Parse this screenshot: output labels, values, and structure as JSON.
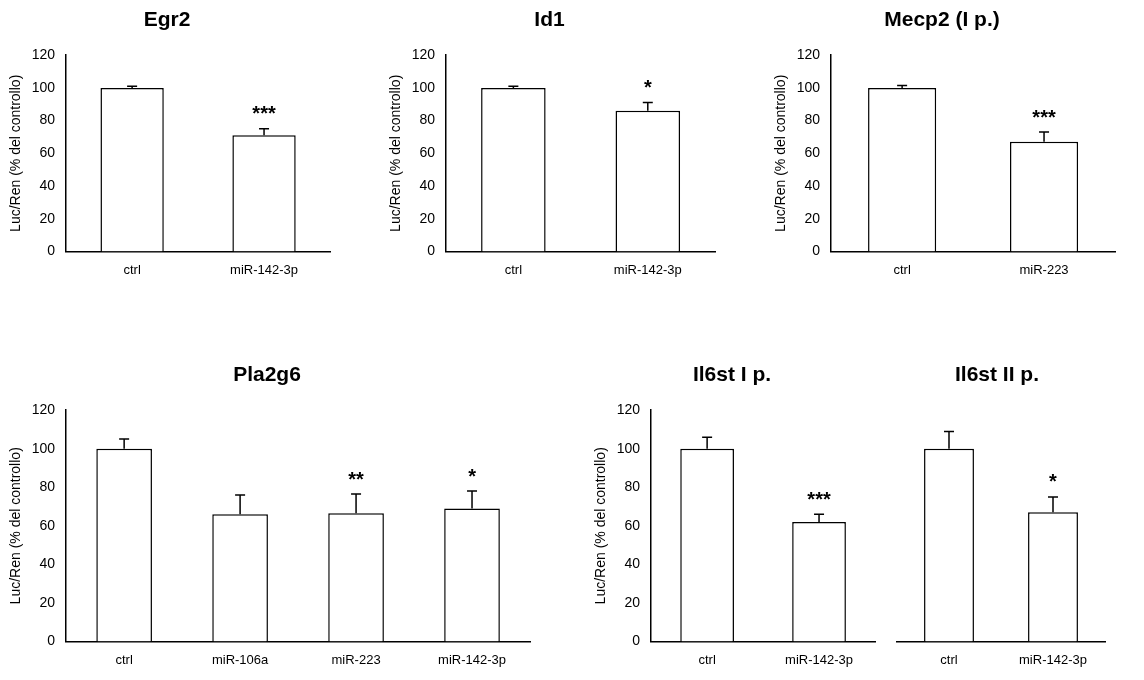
{
  "chart_data": [
    {
      "type": "bar",
      "title": "Egr2",
      "y_label": "Luc/Ren (% del controllo)",
      "categories": [
        "ctrl",
        "miR-142-3p"
      ],
      "values": [
        100,
        71
      ],
      "errors": [
        1,
        4
      ],
      "annotations": [
        null,
        "***"
      ],
      "color": "#ffffff",
      "ylim": [
        0,
        120
      ],
      "yticks": [
        0,
        20,
        40,
        60,
        80,
        100,
        120
      ],
      "grid": false
    },
    {
      "type": "bar",
      "title": "Id1",
      "y_label": "Luc/Ren (% del controllo)",
      "categories": [
        "ctrl",
        "miR-142-3p"
      ],
      "values": [
        100,
        86
      ],
      "errors": [
        1,
        5
      ],
      "annotations": [
        null,
        "*"
      ],
      "color": "#ffffff",
      "ylim": [
        0,
        120
      ],
      "yticks": [
        0,
        20,
        40,
        60,
        80,
        100,
        120
      ],
      "grid": false
    },
    {
      "type": "bar",
      "title": "Mecp2 (I p.)",
      "y_label": "Luc/Ren (% del controllo)",
      "categories": [
        "ctrl",
        "miR-223"
      ],
      "values": [
        100,
        67
      ],
      "errors": [
        1.5,
        6
      ],
      "annotations": [
        null,
        "***"
      ],
      "color": "#ffffff",
      "ylim": [
        0,
        120
      ],
      "yticks": [
        0,
        20,
        40,
        60,
        80,
        100,
        120
      ],
      "grid": false
    },
    {
      "type": "bar",
      "title": "Pla2g6",
      "y_label": "Luc/Ren (% del controllo)",
      "categories": [
        "ctrl",
        "miR-106a",
        "miR-223",
        "miR-142-3p"
      ],
      "values": [
        100,
        66,
        66.5,
        69
      ],
      "errors": [
        5,
        10,
        10,
        9
      ],
      "annotations": [
        null,
        null,
        "**",
        "*"
      ],
      "color": "#ffffff",
      "ylim": [
        0,
        120
      ],
      "yticks": [
        0,
        20,
        40,
        60,
        80,
        100,
        120
      ],
      "grid": false
    },
    {
      "type": "bar",
      "title": "Il6st I p.",
      "y_label": "Luc/Ren (% del controllo)",
      "categories": [
        "ctrl",
        "miR-142-3p"
      ],
      "values": [
        100,
        62
      ],
      "errors": [
        6,
        4
      ],
      "annotations": [
        null,
        "***"
      ],
      "color": "#ffffff",
      "ylim": [
        0,
        120
      ],
      "yticks": [
        0,
        20,
        40,
        60,
        80,
        100,
        120
      ],
      "grid": false
    },
    {
      "type": "bar",
      "title": "Il6st II p.",
      "categories": [
        "ctrl",
        "miR-142-3p"
      ],
      "values": [
        100,
        67
      ],
      "errors": [
        9,
        8
      ],
      "annotations": [
        null,
        "*"
      ],
      "color": "#ffffff",
      "tick_labels": "x",
      "ylim": [
        0,
        120
      ],
      "yticks": [
        0,
        20,
        40,
        60,
        80,
        100,
        120
      ],
      "grid": false
    }
  ]
}
